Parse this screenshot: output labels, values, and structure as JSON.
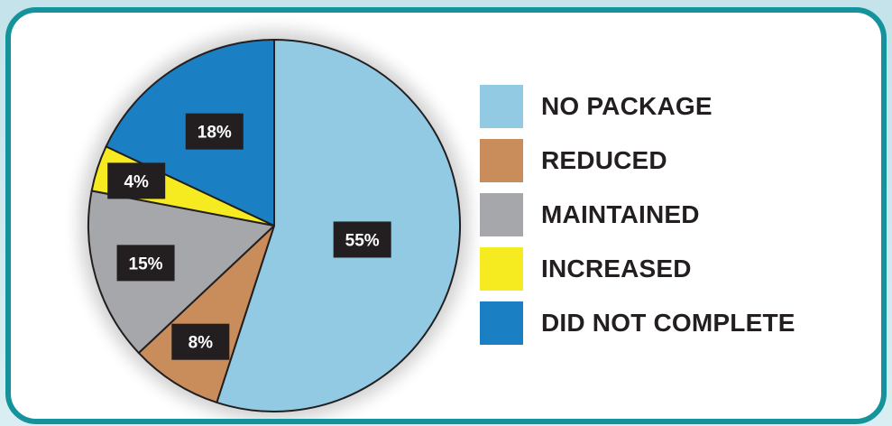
{
  "chart_data": {
    "type": "pie",
    "title": "",
    "slices": [
      {
        "label": "NO PACKAGE",
        "value": 55,
        "display": "55%",
        "color": "#92cae4"
      },
      {
        "label": "REDUCED",
        "value": 8,
        "display": "8%",
        "color": "#c98c5b"
      },
      {
        "label": "MAINTAINED",
        "value": 15,
        "display": "15%",
        "color": "#a5a7aa"
      },
      {
        "label": "INCREASED",
        "value": 4,
        "display": "4%",
        "color": "#f6eb20"
      },
      {
        "label": "DID NOT COMPLETE",
        "value": 18,
        "display": "18%",
        "color": "#1b80c3"
      }
    ],
    "legend_position": "right",
    "data_label_style": "white text on black boxes"
  },
  "colors": {
    "frame_border": "#14939c",
    "background": "#c4e3ea",
    "panel": "#ffffff",
    "label_box": "#231f20",
    "label_text": "#ffffff"
  }
}
